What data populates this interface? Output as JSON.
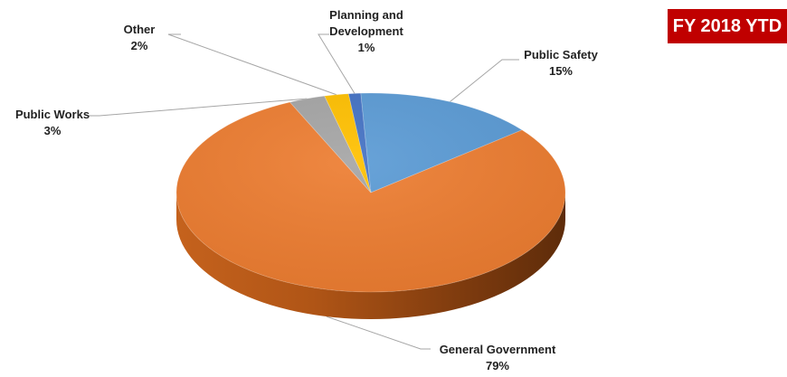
{
  "badge": {
    "text": "FY 2018 YTD"
  },
  "chart_data": {
    "type": "pie",
    "title": "",
    "series": [
      {
        "name": "Public Safety",
        "value": 15,
        "label": "15%",
        "color": "#5b9bd5"
      },
      {
        "name": "General Government",
        "value": 79,
        "label": "79%",
        "color": "#ed7d31"
      },
      {
        "name": "Public Works",
        "value": 3,
        "label": "3%",
        "color": "#a5a5a5"
      },
      {
        "name": "Other",
        "value": 2,
        "label": "2%",
        "color": "#ffc000"
      },
      {
        "name": "Planning and Development",
        "value": 1,
        "label": "1%",
        "color": "#4472c4"
      }
    ],
    "legend": "none",
    "style": "3d"
  },
  "labels": {
    "public_safety": {
      "name": "Public Safety",
      "pct": "15%"
    },
    "general_government": {
      "name": "General Government",
      "pct": "79%"
    },
    "public_works": {
      "name": "Public Works",
      "pct": "3%"
    },
    "other": {
      "name": "Other",
      "pct": "2%"
    },
    "planning_line1": "Planning and",
    "planning_line2": "Development",
    "planning_pct": "1%"
  }
}
